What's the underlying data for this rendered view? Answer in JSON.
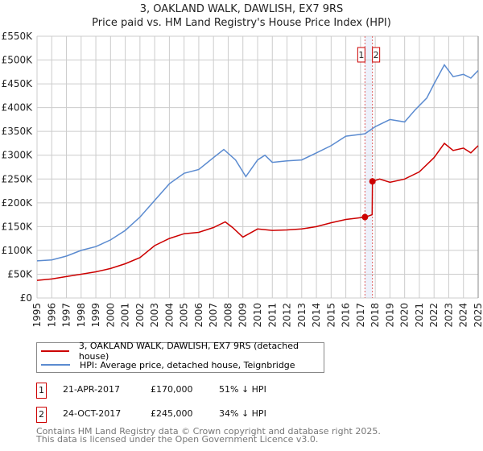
{
  "title_line1": "3, OAKLAND WALK, DAWLISH, EX7 9RS",
  "title_line2": "Price paid vs. HM Land Registry's House Price Index (HPI)",
  "chart_data": {
    "type": "line",
    "xlim": [
      1995,
      2025
    ],
    "ylim": [
      0,
      550000
    ],
    "x_ticks": [
      "1995",
      "1996",
      "1997",
      "1998",
      "1999",
      "2000",
      "2001",
      "2002",
      "2003",
      "2004",
      "2005",
      "2006",
      "2007",
      "2008",
      "2009",
      "2010",
      "2011",
      "2012",
      "2013",
      "2014",
      "2015",
      "2016",
      "2017",
      "2018",
      "2019",
      "2020",
      "2021",
      "2022",
      "2023",
      "2024",
      "2025"
    ],
    "y_ticks": [
      {
        "v": 0,
        "label": "£0"
      },
      {
        "v": 50000,
        "label": "£50K"
      },
      {
        "v": 100000,
        "label": "£100K"
      },
      {
        "v": 150000,
        "label": "£150K"
      },
      {
        "v": 200000,
        "label": "£200K"
      },
      {
        "v": 250000,
        "label": "£250K"
      },
      {
        "v": 300000,
        "label": "£300K"
      },
      {
        "v": 350000,
        "label": "£350K"
      },
      {
        "v": 400000,
        "label": "£400K"
      },
      {
        "v": 450000,
        "label": "£450K"
      },
      {
        "v": 500000,
        "label": "£500K"
      },
      {
        "v": 550000,
        "label": "£550K"
      }
    ],
    "grid": true,
    "series": [
      {
        "name": "3, OAKLAND WALK, DAWLISH, EX7 9RS (detached house)",
        "color": "#cc0000",
        "x": [
          1995,
          1996,
          1997,
          1998,
          1999,
          2000,
          2001,
          2002,
          2003,
          2004,
          2005,
          2006,
          2007,
          2007.8,
          2008.3,
          2009,
          2010,
          2011,
          2012,
          2013,
          2014,
          2015,
          2016,
          2016.8,
          2017.3,
          2017.5,
          2017.79,
          2017.81,
          2018.3,
          2019,
          2020,
          2021,
          2022,
          2022.7,
          2023.3,
          2024,
          2024.5,
          2025
        ],
        "y": [
          37000,
          40000,
          45000,
          50000,
          55000,
          62000,
          72000,
          85000,
          110000,
          125000,
          135000,
          138000,
          148000,
          160000,
          148000,
          128000,
          145000,
          142000,
          143000,
          145000,
          150000,
          158000,
          165000,
          168000,
          170000,
          172000,
          175000,
          245000,
          250000,
          243000,
          250000,
          265000,
          295000,
          325000,
          310000,
          315000,
          305000,
          320000
        ]
      },
      {
        "name": "HPI: Average price, detached house, Teignbridge",
        "color": "#5b8bd0",
        "x": [
          1995,
          1996,
          1997,
          1998,
          1999,
          2000,
          2001,
          2002,
          2003,
          2004,
          2005,
          2006,
          2007,
          2007.7,
          2008.5,
          2009.2,
          2010,
          2010.5,
          2011,
          2012,
          2013,
          2014,
          2015,
          2016,
          2017.3,
          2018,
          2019,
          2020,
          2020.7,
          2021.5,
          2022,
          2022.7,
          2023.3,
          2024,
          2024.5,
          2025
        ],
        "y": [
          78000,
          80000,
          88000,
          100000,
          108000,
          122000,
          142000,
          170000,
          205000,
          240000,
          262000,
          270000,
          295000,
          312000,
          290000,
          255000,
          290000,
          300000,
          285000,
          288000,
          290000,
          305000,
          320000,
          340000,
          345000,
          360000,
          375000,
          370000,
          395000,
          420000,
          450000,
          490000,
          465000,
          470000,
          462000,
          478000
        ]
      }
    ],
    "sales": [
      {
        "id": "1",
        "x": 2017.3,
        "y": 170000
      },
      {
        "id": "2",
        "x": 2017.81,
        "y": 245000
      }
    ],
    "legend_position": "below"
  },
  "legend": [
    {
      "label": "3, OAKLAND WALK, DAWLISH, EX7 9RS (detached house)",
      "color": "#cc0000"
    },
    {
      "label": "HPI: Average price, detached house, Teignbridge",
      "color": "#5b8bd0"
    }
  ],
  "transactions": [
    {
      "num": "1",
      "date": "21-APR-2017",
      "price": "£170,000",
      "hpi": "51% ↓ HPI"
    },
    {
      "num": "2",
      "date": "24-OCT-2017",
      "price": "£245,000",
      "hpi": "34% ↓ HPI"
    }
  ],
  "footer_line1": "Contains HM Land Registry data © Crown copyright and database right 2025.",
  "footer_line2": "This data is licensed under the Open Government Licence v3.0."
}
